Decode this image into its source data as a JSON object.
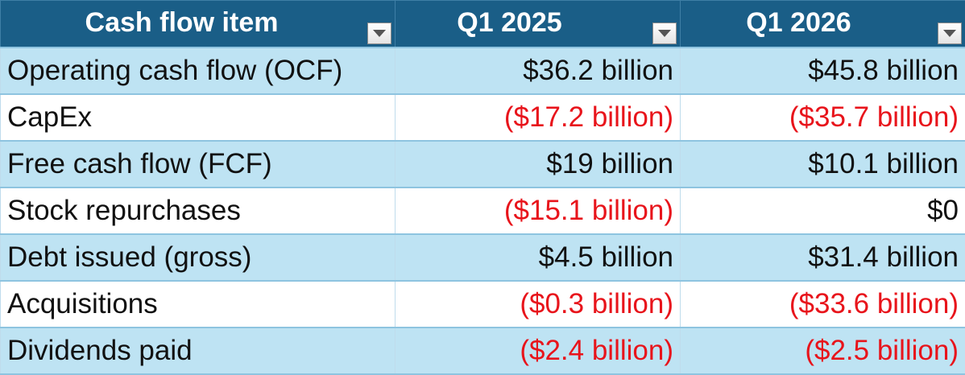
{
  "table": {
    "headers": [
      "Cash flow item",
      "Q1 2025",
      "Q1 2026"
    ],
    "rows": [
      {
        "item": "Operating cash flow (OCF)",
        "q1_2025": "$36.2 billion",
        "q1_2026": "$45.8 billion"
      },
      {
        "item": "CapEx",
        "q1_2025": "($17.2 billion)",
        "q1_2026": "($35.7 billion)"
      },
      {
        "item": "Free cash flow (FCF)",
        "q1_2025": "$19 billion",
        "q1_2026": "$10.1 billion"
      },
      {
        "item": "Stock repurchases",
        "q1_2025": "($15.1 billion)",
        "q1_2026": "$0"
      },
      {
        "item": "Debt issued (gross)",
        "q1_2025": "$4.5 billion",
        "q1_2026": "$31.4 billion"
      },
      {
        "item": "Acquisitions",
        "q1_2025": "($0.3 billion)",
        "q1_2026": "($33.6 billion)"
      },
      {
        "item": "Dividends paid",
        "q1_2025": "($2.4 billion)",
        "q1_2026": "($2.5 billion)"
      }
    ],
    "filter_icon": "dropdown-arrow-icon"
  },
  "colors": {
    "header_bg": "#1a5e87",
    "header_text": "#ffffff",
    "band_row": "#bee3f3",
    "plain_row": "#ffffff",
    "negative_text": "#e8141b",
    "body_text": "#111111"
  }
}
